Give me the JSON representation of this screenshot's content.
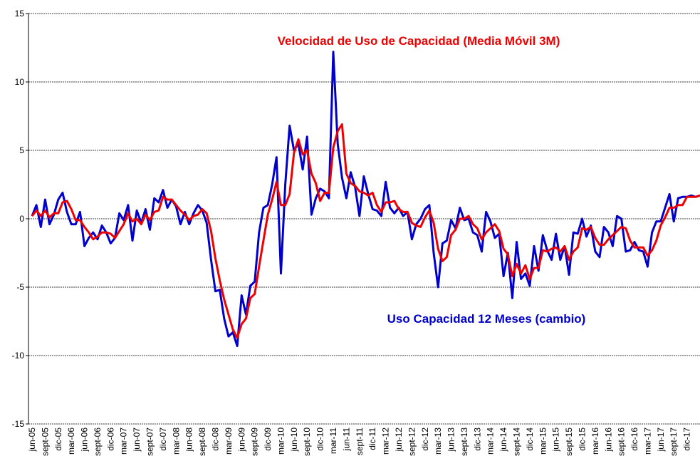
{
  "chart_data": {
    "type": "line",
    "ylim": [
      -15,
      15
    ],
    "yticks": [
      -15,
      -10,
      -5,
      0,
      5,
      10,
      15
    ],
    "grid": true,
    "categories": [
      "jun-05",
      null,
      null,
      "sept-05",
      null,
      null,
      "dic-05",
      null,
      null,
      "mar-06",
      null,
      null,
      "jun-06",
      null,
      null,
      "sept-06",
      null,
      null,
      "dic-06",
      null,
      null,
      "mar-07",
      null,
      null,
      "jun-07",
      null,
      null,
      "sept-07",
      null,
      null,
      "dic-07",
      null,
      null,
      "mar-08",
      null,
      null,
      "jun-08",
      null,
      null,
      "sept-08",
      null,
      null,
      "dic-08",
      null,
      null,
      "mar-09",
      null,
      null,
      "jun-09",
      null,
      null,
      "sept-09",
      null,
      null,
      "dic-09",
      null,
      null,
      "mar-10",
      null,
      null,
      "jun-10",
      null,
      null,
      "sept-10",
      null,
      null,
      "dic-10",
      null,
      null,
      "mar-11",
      null,
      null,
      "jun-11",
      null,
      null,
      "sept-11",
      null,
      null,
      "dic-11",
      null,
      null,
      "mar-12",
      null,
      null,
      "jun-12",
      null,
      null,
      "sept-12",
      null,
      null,
      "dic-12",
      null,
      null,
      "mar-13",
      null,
      null,
      "jun-13",
      null,
      null,
      "sept-13",
      null,
      null,
      "dic-13",
      null,
      null,
      "mar-14",
      null,
      null,
      "jun-14",
      null,
      null,
      "sept-14",
      null,
      null,
      "dic-14",
      null,
      null,
      "mar-15",
      null,
      null,
      "jun-15",
      null,
      null,
      "sept-15",
      null,
      null,
      "dic-15",
      null,
      null,
      "mar-16",
      null,
      null,
      "jun-16",
      null,
      null,
      "sept-16",
      null,
      null,
      "dic-16",
      null,
      null,
      "mar-17",
      null,
      null,
      "jun-17",
      null,
      null,
      "sept-17",
      null,
      null,
      "dic-17",
      null,
      null,
      null
    ],
    "series": [
      {
        "name": "Uso Capacidad 12 Meses (cambio)",
        "color": "#0000cc",
        "values": [
          0.2,
          1.0,
          -0.6,
          1.4,
          -0.4,
          0.3,
          1.4,
          1.9,
          0.5,
          -0.4,
          -0.4,
          0.5,
          -2.0,
          -1.4,
          -1.0,
          -1.5,
          -0.5,
          -1.0,
          -1.8,
          -1.4,
          0.4,
          -0.1,
          1.0,
          -1.6,
          0.6,
          -0.3,
          0.7,
          -0.8,
          1.5,
          1.2,
          2.1,
          0.8,
          1.4,
          0.9,
          -0.4,
          0.5,
          -0.4,
          0.4,
          1.0,
          0.6,
          -0.3,
          -3.0,
          -5.3,
          -5.2,
          -7.3,
          -8.6,
          -8.3,
          -9.3,
          -5.6,
          -7.0,
          -4.9,
          -4.6,
          -1.0,
          0.8,
          1.0,
          2.5,
          4.5,
          -4.0,
          2.5,
          6.8,
          5.0,
          5.5,
          3.6,
          6.0,
          0.3,
          1.5,
          2.2,
          2.0,
          1.5,
          12.2,
          5.5,
          3.0,
          1.5,
          3.4,
          2.3,
          0.2,
          3.1,
          1.8,
          0.7,
          0.6,
          0.2,
          2.7,
          0.8,
          0.4,
          0.8,
          0.2,
          0.5,
          -1.5,
          -0.4,
          0.0,
          0.7,
          1.0,
          -2.5,
          -5.0,
          -1.8,
          -1.6,
          -0.1,
          -0.7,
          0.8,
          -0.1,
          0.0,
          -1.0,
          -1.2,
          -2.4,
          0.5,
          -0.2,
          -1.4,
          -1.1,
          -4.2,
          -2.5,
          -5.8,
          -1.7,
          -4.4,
          -4.0,
          -4.9,
          -2.0,
          -3.8,
          -1.2,
          -2.3,
          -3.0,
          -1.1,
          -3.0,
          -2.0,
          -4.1,
          -1.0,
          -1.1,
          0.0,
          -1.3,
          -0.5,
          -2.4,
          -2.8,
          -0.6,
          -1.0,
          -2.0,
          0.2,
          0.0,
          -2.4,
          -2.3,
          -1.7,
          -2.3,
          -2.4,
          -3.5,
          -1.0,
          -0.2,
          -0.2,
          0.8,
          1.8,
          -0.2,
          1.5,
          1.6,
          1.6,
          1.7,
          1.6,
          1.7
        ]
      },
      {
        "name": "Velocidad de Uso de Capacidad (Media Móvil 3M)",
        "color": "#ee0000",
        "values": [
          0.2,
          0.6,
          0.2,
          0.6,
          0.1,
          0.4,
          0.4,
          1.2,
          1.3,
          0.7,
          -0.1,
          -0.1,
          -0.6,
          -1.0,
          -1.5,
          -1.3,
          -1.0,
          -1.0,
          -1.1,
          -1.4,
          -0.9,
          -0.4,
          0.4,
          -0.2,
          0.0,
          -0.4,
          0.3,
          -0.1,
          0.5,
          0.6,
          1.6,
          1.4,
          1.4,
          1.0,
          0.6,
          0.3,
          -0.1,
          0.2,
          0.3,
          0.7,
          0.4,
          -0.9,
          -2.9,
          -4.5,
          -5.9,
          -7.0,
          -8.1,
          -8.7,
          -7.7,
          -7.3,
          -5.8,
          -5.5,
          -3.5,
          -1.6,
          0.3,
          1.4,
          2.7,
          1.0,
          1.0,
          1.8,
          4.8,
          5.8,
          4.7,
          5.0,
          3.3,
          2.6,
          1.3,
          1.9,
          1.9,
          5.2,
          6.4,
          6.9,
          3.3,
          2.6,
          2.4,
          2.0,
          1.9,
          1.7,
          1.9,
          1.0,
          0.5,
          1.2,
          1.2,
          1.3,
          0.7,
          0.5,
          0.5,
          -0.3,
          -0.5,
          -0.6,
          0.1,
          0.6,
          -0.3,
          -2.2,
          -3.1,
          -2.8,
          -1.2,
          -0.8,
          0.0,
          0.0,
          0.2,
          -0.4,
          -0.7,
          -1.5,
          -1.0,
          -0.7,
          -0.4,
          -0.9,
          -2.2,
          -2.6,
          -4.2,
          -3.3,
          -4.0,
          -3.4,
          -4.4,
          -3.6,
          -3.6,
          -2.3,
          -2.4,
          -2.2,
          -2.1,
          -2.4,
          -2.0,
          -3.0,
          -2.4,
          -2.1,
          -0.7,
          -0.8,
          -0.6,
          -1.4,
          -1.9,
          -1.9,
          -1.5,
          -1.2,
          -0.9,
          -0.6,
          -0.7,
          -1.6,
          -2.1,
          -2.1,
          -2.1,
          -2.7,
          -2.3,
          -1.6,
          -0.5,
          0.1,
          0.8,
          0.8,
          1.0,
          1.0,
          1.6,
          1.6,
          1.6,
          1.7
        ]
      }
    ]
  }
}
